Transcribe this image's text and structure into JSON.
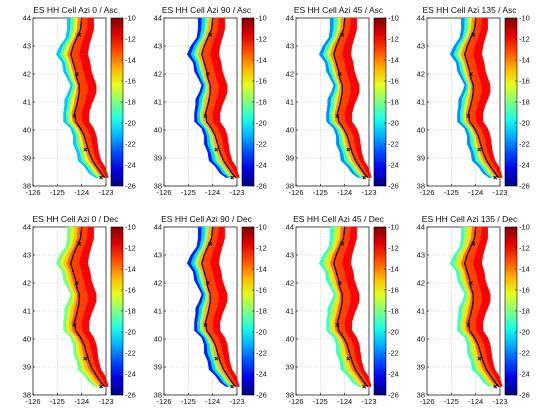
{
  "chart_data": {
    "type": "heatmap",
    "axes": {
      "x_ticks": [
        -126,
        -125,
        -124,
        -123
      ],
      "y_ticks": [
        38,
        39,
        40,
        41,
        42,
        43,
        44
      ],
      "xlim": [
        -126,
        -123
      ],
      "ylim": [
        38,
        44
      ],
      "grid": true
    },
    "colorbar": {
      "ticks": [
        -10,
        -12,
        -14,
        -16,
        -18,
        -20,
        -22,
        -24,
        -26
      ],
      "range": [
        -26,
        -10
      ],
      "colormap": "jet"
    },
    "coastline_color": "#000000",
    "panels": [
      {
        "title": "ES HH Cell Azi 0 / Asc",
        "west_level": -22,
        "east_level": -12
      },
      {
        "title": "ES HH Cell Azi 90 / Asc",
        "west_level": -25,
        "east_level": -12
      },
      {
        "title": "ES HH Cell Azi 45 / Asc",
        "west_level": -23,
        "east_level": -12
      },
      {
        "title": "ES HH Cell Azi 135 / Asc",
        "west_level": -23,
        "east_level": -12
      },
      {
        "title": "ES HH Cell Azi 0 / Dec",
        "west_level": -19,
        "east_level": -12
      },
      {
        "title": "ES HH Cell Azi 90 / Dec",
        "west_level": -25,
        "east_level": -12
      },
      {
        "title": "ES HH Cell Azi 45 / Dec",
        "west_level": -20,
        "east_level": -12
      },
      {
        "title": "ES HH Cell Azi 135 / Dec",
        "west_level": -20,
        "east_level": -12
      }
    ]
  }
}
